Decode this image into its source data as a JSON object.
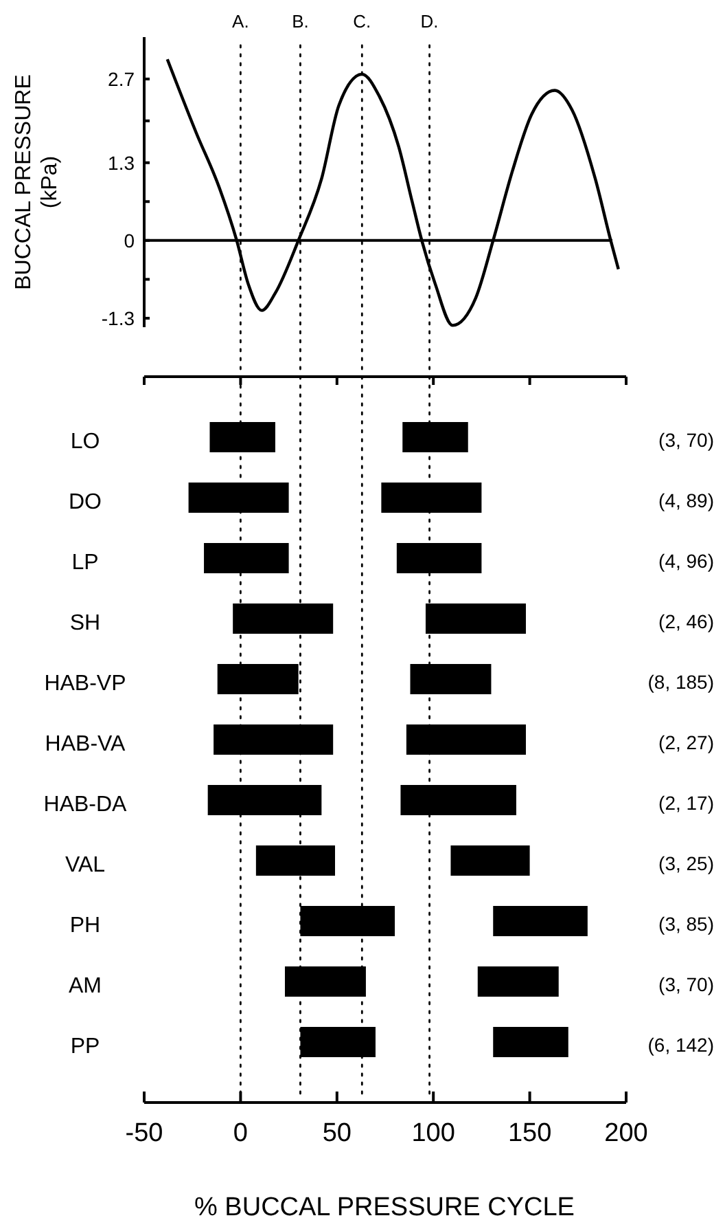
{
  "chart_data": [
    {
      "type": "line",
      "ylabel": "BUCCAL PRESSURE\n(kPa)",
      "xlim": [
        -50,
        200
      ],
      "ylim": [
        -1.45,
        3.4
      ],
      "tick_labels": "y",
      "yticks": [
        -1.3,
        {
          "value": -0.65,
          "label": null
        },
        0,
        {
          "value": 0.65,
          "label": null
        },
        1.3,
        {
          "value": 2.0,
          "label": null
        },
        2.7
      ],
      "series": [
        {
          "color": "#000000",
          "x": [
            -38,
            -23,
            -11,
            -2,
            4,
            11,
            18,
            30,
            42,
            51,
            63,
            72,
            82,
            89,
            94,
            101,
            110,
            122,
            131,
            141,
            151,
            163,
            172,
            184,
            192,
            196
          ],
          "values": [
            3.03,
            1.8,
            0.88,
            0,
            -0.73,
            -1.17,
            -0.88,
            0,
            1.03,
            2.26,
            2.78,
            2.41,
            1.57,
            0.65,
            0,
            -0.73,
            -1.42,
            -0.96,
            0,
            1.16,
            2.11,
            2.51,
            2.18,
            1.03,
            0,
            -0.48
          ]
        }
      ],
      "marker": "none",
      "line_style": "solid",
      "ref_lines": [
        {
          "axis": "y",
          "value": 0,
          "line_style": "solid"
        },
        {
          "axis": "x",
          "value": 0,
          "label": "A.",
          "line_style": "dotted"
        },
        {
          "axis": "x",
          "value": 31,
          "label": "B.",
          "line_style": "dotted"
        },
        {
          "axis": "x",
          "value": 63,
          "label": "C.",
          "line_style": "dotted"
        },
        {
          "axis": "x",
          "value": 98,
          "label": "D.",
          "line_style": "dotted"
        }
      ]
    },
    {
      "type": "bar",
      "orientation": "horizontal",
      "xlabel": "% BUCCAL PRESSURE CYCLE",
      "xlim": [
        -50,
        200
      ],
      "xticks": [
        -50,
        0,
        50,
        100,
        150,
        200
      ],
      "categories": [
        "LO",
        "DO",
        "LP",
        "SH",
        "HAB-VP",
        "HAB-VA",
        "HAB-DA",
        "VAL",
        "PH",
        "AM",
        "PP"
      ],
      "series": [
        {
          "color": "#000000",
          "base": [
            -16,
            -27,
            -19,
            -4,
            -12,
            -14,
            -17,
            8,
            31,
            23,
            31
          ],
          "values": [
            34,
            52,
            44,
            52,
            42,
            62,
            59,
            41,
            49,
            42,
            39
          ]
        },
        {
          "color": "#000000",
          "base": [
            84,
            73,
            81,
            96,
            88,
            86,
            83,
            109,
            131,
            123,
            131
          ],
          "values": [
            34,
            52,
            44,
            52,
            42,
            62,
            60,
            41,
            49,
            42,
            39
          ]
        }
      ],
      "ref_lines": [
        {
          "axis": "x",
          "value": 0,
          "line_style": "dotted"
        },
        {
          "axis": "x",
          "value": 31,
          "line_style": "dotted"
        },
        {
          "axis": "x",
          "value": 63,
          "line_style": "dotted"
        },
        {
          "axis": "x",
          "value": 98,
          "line_style": "dotted"
        }
      ],
      "annotations": [
        "(3, 70)",
        "(4, 89)",
        "(4, 96)",
        "(2, 46)",
        "(8, 185)",
        "(2, 27)",
        "(2, 17)",
        "(3, 25)",
        "(3, 85)",
        "(3, 70)",
        "(6, 142)"
      ]
    }
  ]
}
